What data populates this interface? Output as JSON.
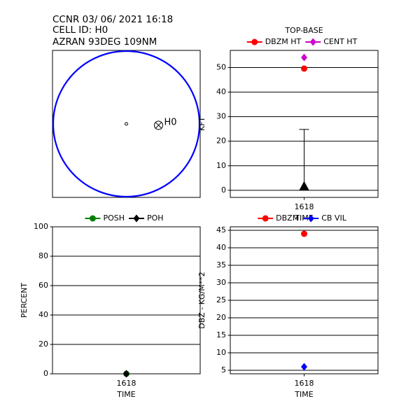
{
  "header": {
    "lines": [
      "CCNR 03/ 06/ 2021 16:18",
      "CELL ID: H0",
      "AZRAN   93DEG 109NM"
    ]
  },
  "chart_data": [
    {
      "type": "cell-map",
      "cell_label": "H0",
      "color": "#0000ff"
    },
    {
      "type": "line",
      "title": "TOP-BASE",
      "categories": [
        "1618"
      ],
      "xlabel": "TIME",
      "ylabel": "KFT",
      "series": [
        {
          "name": "DBZM HT",
          "color": "#ff0000",
          "marker": "circle",
          "values": [
            49.6
          ]
        },
        {
          "name": "CENT HT",
          "color": "#cc00cc",
          "marker": "diamond",
          "values": [
            54.1
          ]
        }
      ],
      "range_low": [
        1.5
      ],
      "range_high": [
        24.8
      ],
      "ylim": [
        -2.9,
        57
      ],
      "yticks": [
        0,
        10,
        20,
        30,
        40,
        50
      ],
      "grid": true
    },
    {
      "type": "line",
      "categories": [
        "1618"
      ],
      "xlabel": "TIME",
      "ylabel": "PERCENT",
      "series": [
        {
          "name": "POSH",
          "color": "#008000",
          "marker": "circle",
          "values": [
            0
          ]
        },
        {
          "name": "POH",
          "color": "#000000",
          "marker": "diamond",
          "values": [
            0
          ]
        }
      ],
      "ylim": [
        0,
        100
      ],
      "yticks": [
        0,
        20,
        40,
        60,
        80,
        100
      ],
      "grid": true
    },
    {
      "type": "line",
      "categories": [
        "1618"
      ],
      "xlabel": "TIME",
      "ylabel": "DBZ - KG/M**2",
      "series": [
        {
          "name": "DBZM",
          "color": "#ff0000",
          "marker": "circle",
          "values": [
            44
          ]
        },
        {
          "name": "CB VIL",
          "color": "#0000ff",
          "marker": "diamond",
          "values": [
            6
          ]
        }
      ],
      "ylim": [
        4,
        46
      ],
      "yticks": [
        5,
        10,
        15,
        20,
        25,
        30,
        35,
        40,
        45
      ],
      "grid": true
    }
  ]
}
